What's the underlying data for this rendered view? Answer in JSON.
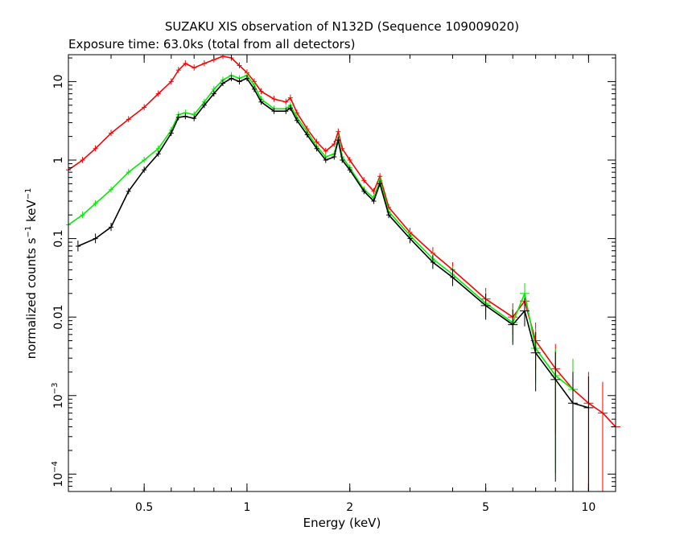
{
  "chart_data": {
    "type": "scatter",
    "title": "SUZAKU XIS observation of N132D (Sequence 109009020)",
    "subtitle": "Exposure time: 63.0ks (total from all detectors)",
    "xlabel": "Energy (keV)",
    "ylabel_main": "normalized counts s",
    "ylabel_exp1": "−1",
    "ylabel_mid": " keV",
    "ylabel_exp2": "−1",
    "x_scale": "log",
    "y_scale": "log",
    "xlim": [
      0.3,
      12
    ],
    "ylim": [
      6e-05,
      22
    ],
    "grid": false,
    "legend": "none",
    "x_ticks": [
      {
        "value": 0.5,
        "label": "0.5"
      },
      {
        "value": 1,
        "label": "1"
      },
      {
        "value": 2,
        "label": "2"
      },
      {
        "value": 5,
        "label": "5"
      },
      {
        "value": 10,
        "label": "10"
      }
    ],
    "y_ticks": [
      {
        "value": 10,
        "label": "10"
      },
      {
        "value": 1,
        "label": "1"
      },
      {
        "value": 0.1,
        "label": "0.1"
      },
      {
        "value": 0.01,
        "label": "0.01"
      },
      {
        "value": 0.001,
        "label_base": "10",
        "label_exp": "−3"
      },
      {
        "value": 0.0001,
        "label_base": "10",
        "label_exp": "−4"
      }
    ],
    "series": [
      {
        "color": "#ff0000",
        "points": [
          [
            0.3,
            0.75
          ],
          [
            0.33,
            1.0
          ],
          [
            0.36,
            1.4
          ],
          [
            0.4,
            2.2
          ],
          [
            0.45,
            3.3
          ],
          [
            0.5,
            4.7
          ],
          [
            0.55,
            7.0
          ],
          [
            0.6,
            10
          ],
          [
            0.63,
            14
          ],
          [
            0.66,
            17
          ],
          [
            0.7,
            15
          ],
          [
            0.75,
            17
          ],
          [
            0.8,
            19
          ],
          [
            0.85,
            21
          ],
          [
            0.9,
            20
          ],
          [
            0.95,
            16
          ],
          [
            1.0,
            13
          ],
          [
            1.05,
            10
          ],
          [
            1.1,
            7.5
          ],
          [
            1.2,
            6.0
          ],
          [
            1.3,
            5.5
          ],
          [
            1.34,
            6.2
          ],
          [
            1.4,
            4.0
          ],
          [
            1.5,
            2.5
          ],
          [
            1.6,
            1.7
          ],
          [
            1.7,
            1.3
          ],
          [
            1.8,
            1.6
          ],
          [
            1.85,
            2.3
          ],
          [
            1.9,
            1.4
          ],
          [
            2.0,
            1.0
          ],
          [
            2.2,
            0.55
          ],
          [
            2.35,
            0.4
          ],
          [
            2.45,
            0.62
          ],
          [
            2.6,
            0.25
          ],
          [
            3.0,
            0.12
          ],
          [
            3.5,
            0.065
          ],
          [
            4.0,
            0.04
          ],
          [
            5.0,
            0.017
          ],
          [
            6.0,
            0.01
          ],
          [
            6.5,
            0.016
          ],
          [
            7.0,
            0.005
          ],
          [
            8.0,
            0.0022
          ],
          [
            9.0,
            0.0012
          ],
          [
            10.0,
            0.0008
          ],
          [
            11.0,
            0.0006
          ],
          [
            12.0,
            0.0004
          ]
        ]
      },
      {
        "color": "#00ee00",
        "points": [
          [
            0.3,
            0.15
          ],
          [
            0.33,
            0.2
          ],
          [
            0.36,
            0.28
          ],
          [
            0.4,
            0.42
          ],
          [
            0.45,
            0.7
          ],
          [
            0.5,
            1.0
          ],
          [
            0.55,
            1.4
          ],
          [
            0.6,
            2.4
          ],
          [
            0.63,
            3.8
          ],
          [
            0.66,
            4.0
          ],
          [
            0.7,
            3.8
          ],
          [
            0.75,
            5.5
          ],
          [
            0.8,
            8.0
          ],
          [
            0.85,
            10.5
          ],
          [
            0.9,
            12
          ],
          [
            0.95,
            11
          ],
          [
            1.0,
            12
          ],
          [
            1.05,
            9.0
          ],
          [
            1.1,
            6.0
          ],
          [
            1.2,
            4.5
          ],
          [
            1.3,
            4.5
          ],
          [
            1.34,
            5.0
          ],
          [
            1.4,
            3.5
          ],
          [
            1.5,
            2.3
          ],
          [
            1.6,
            1.5
          ],
          [
            1.7,
            1.1
          ],
          [
            1.8,
            1.2
          ],
          [
            1.85,
            1.9
          ],
          [
            1.9,
            1.1
          ],
          [
            2.0,
            0.8
          ],
          [
            2.2,
            0.42
          ],
          [
            2.35,
            0.33
          ],
          [
            2.45,
            0.55
          ],
          [
            2.6,
            0.22
          ],
          [
            3.0,
            0.11
          ],
          [
            3.5,
            0.055
          ],
          [
            4.0,
            0.035
          ],
          [
            5.0,
            0.015
          ],
          [
            6.0,
            0.0085
          ],
          [
            6.5,
            0.02
          ],
          [
            7.0,
            0.004
          ],
          [
            8.0,
            0.0018
          ],
          [
            9.0,
            0.0012
          ]
        ]
      },
      {
        "color": "#000000",
        "points": [
          [
            0.32,
            0.08
          ],
          [
            0.36,
            0.1
          ],
          [
            0.4,
            0.14
          ],
          [
            0.45,
            0.4
          ],
          [
            0.5,
            0.75
          ],
          [
            0.55,
            1.2
          ],
          [
            0.6,
            2.2
          ],
          [
            0.63,
            3.5
          ],
          [
            0.66,
            3.6
          ],
          [
            0.7,
            3.4
          ],
          [
            0.75,
            5.0
          ],
          [
            0.8,
            7.0
          ],
          [
            0.85,
            9.5
          ],
          [
            0.9,
            11
          ],
          [
            0.95,
            10
          ],
          [
            1.0,
            11
          ],
          [
            1.05,
            8.0
          ],
          [
            1.1,
            5.5
          ],
          [
            1.2,
            4.2
          ],
          [
            1.3,
            4.2
          ],
          [
            1.34,
            4.6
          ],
          [
            1.4,
            3.2
          ],
          [
            1.5,
            2.1
          ],
          [
            1.6,
            1.4
          ],
          [
            1.7,
            1.0
          ],
          [
            1.8,
            1.1
          ],
          [
            1.85,
            1.8
          ],
          [
            1.9,
            1.0
          ],
          [
            2.0,
            0.75
          ],
          [
            2.2,
            0.4
          ],
          [
            2.35,
            0.3
          ],
          [
            2.45,
            0.5
          ],
          [
            2.6,
            0.2
          ],
          [
            3.0,
            0.1
          ],
          [
            3.5,
            0.05
          ],
          [
            4.0,
            0.032
          ],
          [
            5.0,
            0.014
          ],
          [
            6.0,
            0.008
          ],
          [
            6.5,
            0.012
          ],
          [
            7.0,
            0.0035
          ],
          [
            8.0,
            0.0016
          ],
          [
            9.0,
            0.0008
          ],
          [
            10.0,
            0.0007
          ]
        ]
      }
    ]
  }
}
